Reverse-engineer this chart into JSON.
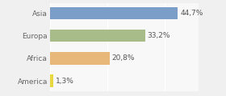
{
  "categories": [
    "Asia",
    "Europa",
    "Africa",
    "America"
  ],
  "values": [
    44.7,
    33.2,
    20.8,
    1.3
  ],
  "labels": [
    "44,7%",
    "33,2%",
    "20,8%",
    "1,3%"
  ],
  "bar_colors": [
    "#7a9ec8",
    "#a8bc8a",
    "#e8b87a",
    "#e8d840"
  ],
  "background_color": "#f0f0f0",
  "plot_bg_color": "#f8f8f8",
  "xlim": [
    0,
    52
  ],
  "bar_height": 0.55,
  "label_fontsize": 6.5,
  "tick_fontsize": 6.5,
  "label_color": "#555555",
  "tick_color": "#666666"
}
